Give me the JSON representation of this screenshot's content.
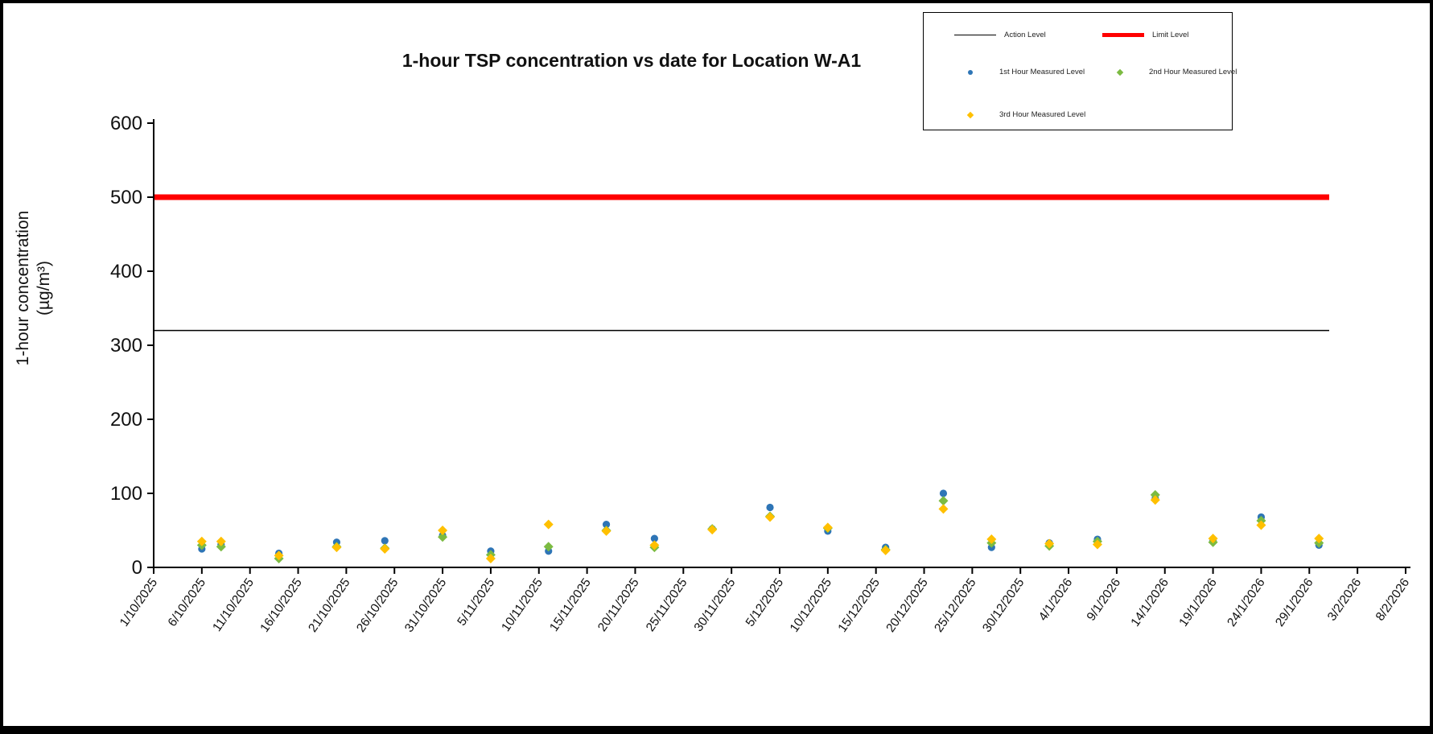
{
  "page": {
    "background": "#ffffff",
    "frame_border_color": "#000000"
  },
  "chart_data": {
    "type": "scatter",
    "title": "1-hour TSP concentration vs date for Location W-A1",
    "ylabel": "1-hour concentration",
    "ylabel_units": "(µg/m³)",
    "xlabel": "",
    "ylim": [
      0,
      600
    ],
    "yticks": [
      0,
      100,
      200,
      300,
      400,
      500,
      600
    ],
    "xticks": [
      "1/10/2025",
      "6/10/2025",
      "11/10/2025",
      "16/10/2025",
      "21/10/2025",
      "26/10/2025",
      "31/10/2025",
      "5/11/2025",
      "10/11/2025",
      "15/11/2025",
      "20/11/2025",
      "25/11/2025",
      "30/11/2025",
      "5/12/2025",
      "10/12/2025",
      "15/12/2025",
      "20/12/2025",
      "25/12/2025",
      "30/12/2025",
      "4/1/2026",
      "9/1/2026",
      "14/1/2026",
      "19/1/2026",
      "24/1/2026",
      "29/1/2026",
      "3/2/2026",
      "8/2/2026"
    ],
    "grid": false,
    "legend_position": "top-right",
    "reference_lines": [
      {
        "name": "Action Level",
        "value": 320,
        "color": "#000000",
        "width": 1.5
      },
      {
        "name": "Limit Level",
        "value": 500,
        "color": "#FF0000",
        "width": 7
      }
    ],
    "dates": [
      "6/10/2025",
      "8/10/2025",
      "14/10/2025",
      "20/10/2025",
      "25/10/2025",
      "31/10/2025",
      "5/11/2025",
      "11/11/2025",
      "17/11/2025",
      "22/11/2025",
      "28/11/2025",
      "4/12/2025",
      "10/12/2025",
      "16/12/2025",
      "22/12/2025",
      "27/12/2025",
      "2/1/2026",
      "7/1/2026",
      "13/1/2026",
      "19/1/2026",
      "24/1/2026",
      "30/1/2026"
    ],
    "series": [
      {
        "name": "1st Hour Measured Level",
        "marker": "circle",
        "color": "#2E75B6",
        "values": [
          25,
          31,
          19,
          34,
          36,
          43,
          22,
          22,
          58,
          39,
          52,
          81,
          49,
          27,
          100,
          27,
          33,
          38,
          93,
          36,
          68,
          30
        ]
      },
      {
        "name": "2nd Hour Measured Level",
        "marker": "diamond",
        "color": "#7CBB42",
        "values": [
          30,
          28,
          12,
          28,
          26,
          41,
          17,
          28,
          50,
          27,
          52,
          69,
          53,
          24,
          90,
          33,
          29,
          35,
          98,
          34,
          63,
          33
        ]
      },
      {
        "name": "3rd Hour Measured Level",
        "marker": "diamond",
        "color": "#FFC000",
        "values": [
          35,
          35,
          16,
          27,
          25,
          50,
          12,
          58,
          49,
          30,
          51,
          68,
          54,
          23,
          79,
          38,
          32,
          31,
          91,
          39,
          57,
          39
        ]
      }
    ],
    "legend": {
      "entries": [
        {
          "label": "Action Level",
          "swatch": "line",
          "color": "#000000"
        },
        {
          "label": "Limit Level",
          "swatch": "thick-line",
          "color": "#FF0000"
        },
        {
          "label": "1st Hour Measured Level",
          "swatch": "circle",
          "color": "#2E75B6"
        },
        {
          "label": "2nd Hour Measured Level",
          "swatch": "diamond",
          "color": "#7CBB42"
        },
        {
          "label": "3rd Hour Measured Level",
          "swatch": "diamond",
          "color": "#FFC000"
        }
      ]
    }
  }
}
